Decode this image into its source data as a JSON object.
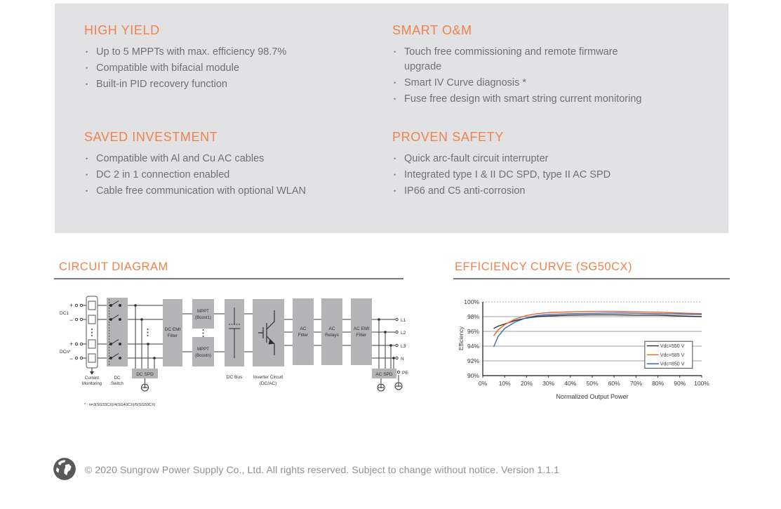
{
  "features": {
    "high_yield": {
      "title": "HIGH YIELD",
      "bullets": [
        "Up to 5 MPPTs with max. efficiency 98.7%",
        "Compatible with bifacial module",
        "Built-in PID recovery function"
      ]
    },
    "smart_om": {
      "title": "SMART O&M",
      "bullets": [
        "Touch free commissioning and remote firmware upgrade",
        "Smart IV Curve diagnosis *",
        "Fuse free design with smart string current monitoring"
      ]
    },
    "saved_investment": {
      "title": "SAVED INVESTMENT",
      "bullets": [
        "Compatible with Al and Cu AC cables",
        "DC 2 in 1 connection enabled",
        "Cable free communication with optional WLAN"
      ]
    },
    "proven_safety": {
      "title": "PROVEN SAFETY",
      "bullets": [
        "Quick arc-fault circuit interrupter",
        "Integrated type I & II DC SPD, type II AC SPD",
        "IP66 and C5 anti-corrosion"
      ]
    }
  },
  "sections": {
    "circuit_diagram_title": "CIRCUIT DIAGRAM",
    "efficiency_curve_title": "EFFICIENCY CURVE (SG50CX)"
  },
  "diagram": {
    "inputs": {
      "dc1": "DC1",
      "dcn": "DCn*",
      "plus": "+",
      "minus": "−"
    },
    "blocks": {
      "current_monitoring": [
        "Current",
        "Monitoring"
      ],
      "dc_switch": [
        "DC",
        "Switch"
      ],
      "dc_spd": "DC SPD",
      "dc_emi_filter": [
        "DC EMI",
        "Filter"
      ],
      "mppt_boost1": [
        "MPPT",
        "(Boost1)"
      ],
      "mppt_boostn": [
        "MPPT",
        "(Boostn)"
      ],
      "dc_bus": "DC Bus",
      "inverter_circuit": [
        "Inverter Circuit",
        "(DC/AC)"
      ],
      "ac_filter": [
        "AC",
        "Filter"
      ],
      "ac_relays": [
        "AC",
        "Relays"
      ],
      "ac_emi_filter": [
        "AC EMI",
        "Filter"
      ],
      "ac_spd": "AC SPD"
    },
    "outputs": {
      "l1": "L1",
      "l2": "L2",
      "l3": "L3",
      "n": "N",
      "pe": "PE"
    },
    "footnote": "* : n=3(SG33CX)/4(SG40CX)/5(SG50CX)"
  },
  "chart_data": {
    "type": "line",
    "title": "EFFICIENCY CURVE (SG50CX)",
    "xlabel": "Normalized Output Power",
    "ylabel": "Efficiency",
    "xlim": [
      0,
      100
    ],
    "ylim": [
      90,
      100
    ],
    "x_ticks": [
      "0%",
      "10%",
      "20%",
      "30%",
      "40%",
      "50%",
      "60%",
      "70%",
      "80%",
      "90%",
      "100%"
    ],
    "y_ticks": [
      "90%",
      "92%",
      "94%",
      "96%",
      "98%",
      "100%"
    ],
    "grid": "horizontal",
    "legend_position": "right-center",
    "x": [
      5,
      7,
      10,
      15,
      20,
      25,
      30,
      40,
      50,
      60,
      70,
      80,
      90,
      100
    ],
    "series": [
      {
        "name": "Vdc=550 V",
        "color": "#2E2E30",
        "values": [
          96.4,
          96.7,
          97.0,
          97.5,
          97.8,
          98.0,
          98.1,
          98.2,
          98.25,
          98.25,
          98.2,
          98.2,
          98.1,
          98.0
        ]
      },
      {
        "name": "Vdc=585 V",
        "color": "#E8622C",
        "values": [
          95.4,
          96.2,
          96.9,
          97.7,
          98.15,
          98.4,
          98.55,
          98.65,
          98.7,
          98.7,
          98.65,
          98.6,
          98.5,
          98.4
        ]
      },
      {
        "name": "Vdc=850 V",
        "color": "#3F69B0",
        "values": [
          93.9,
          95.3,
          96.4,
          97.3,
          97.85,
          98.15,
          98.3,
          98.4,
          98.45,
          98.5,
          98.45,
          98.4,
          98.35,
          98.3
        ]
      }
    ]
  },
  "footer": {
    "copyright": "© 2020 Sungrow Power Supply Co., Ltd. All rights reserved. Subject to change without notice. Version 1.1.1"
  },
  "colors": {
    "accent_orange": "#F0824D",
    "panel_gray": "#E2E2E4",
    "diagram_block_gray": "#B4B4B6",
    "series_550": "#2E2E30",
    "series_585": "#E8622C",
    "series_850": "#3F69B0"
  }
}
